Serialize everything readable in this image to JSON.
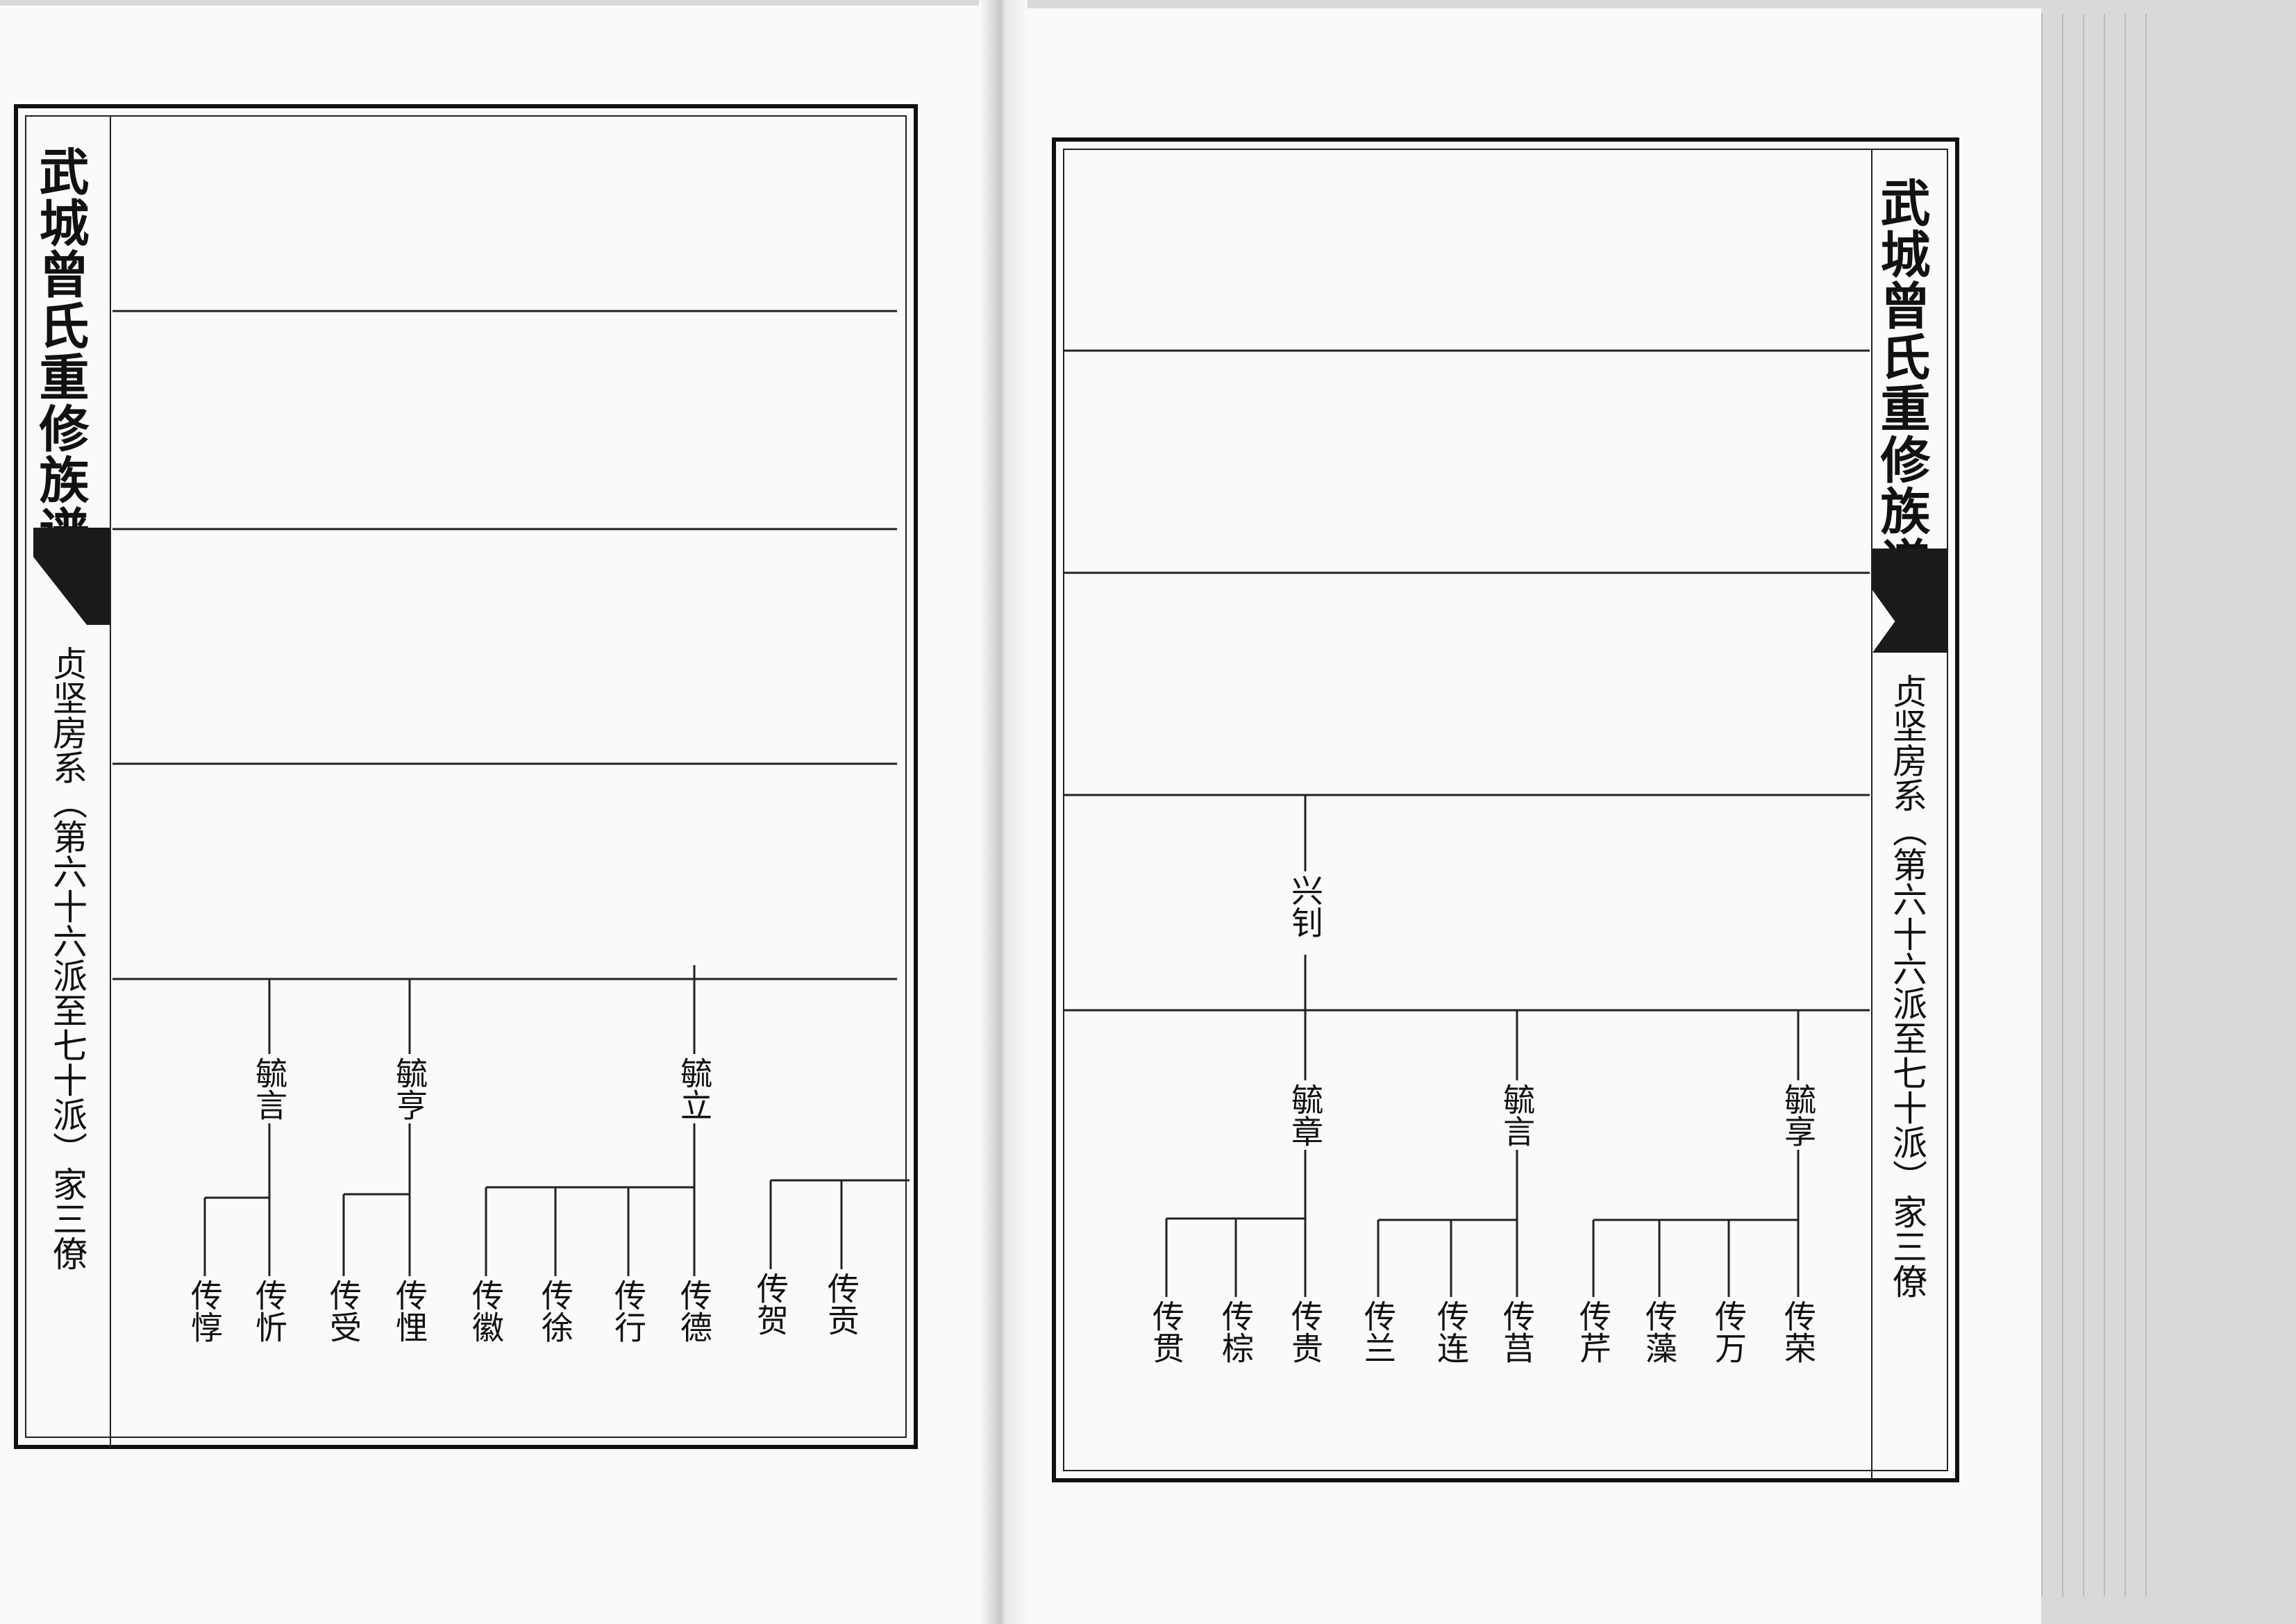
{
  "book_title": "武城曾氏重修族谱",
  "subtitle": "贞坚房系（第六十六派至七十派）家三僚",
  "left_page": {
    "generation_68": [
      "毓言",
      "毓亨",
      "毓立"
    ],
    "generation_69": [
      "传惇",
      "传忻",
      "传受",
      "传悝",
      "传徽",
      "传徐",
      "传行",
      "传德",
      "传贺",
      "传贡"
    ]
  },
  "right_page": {
    "generation_67": [
      "兴钊"
    ],
    "generation_68": [
      "毓章",
      "毓言",
      "毓享"
    ],
    "generation_69": [
      "传贯",
      "传棕",
      "传贵",
      "传兰",
      "传连",
      "传莒",
      "传芹",
      "传藻",
      "传万",
      "传荣"
    ]
  }
}
